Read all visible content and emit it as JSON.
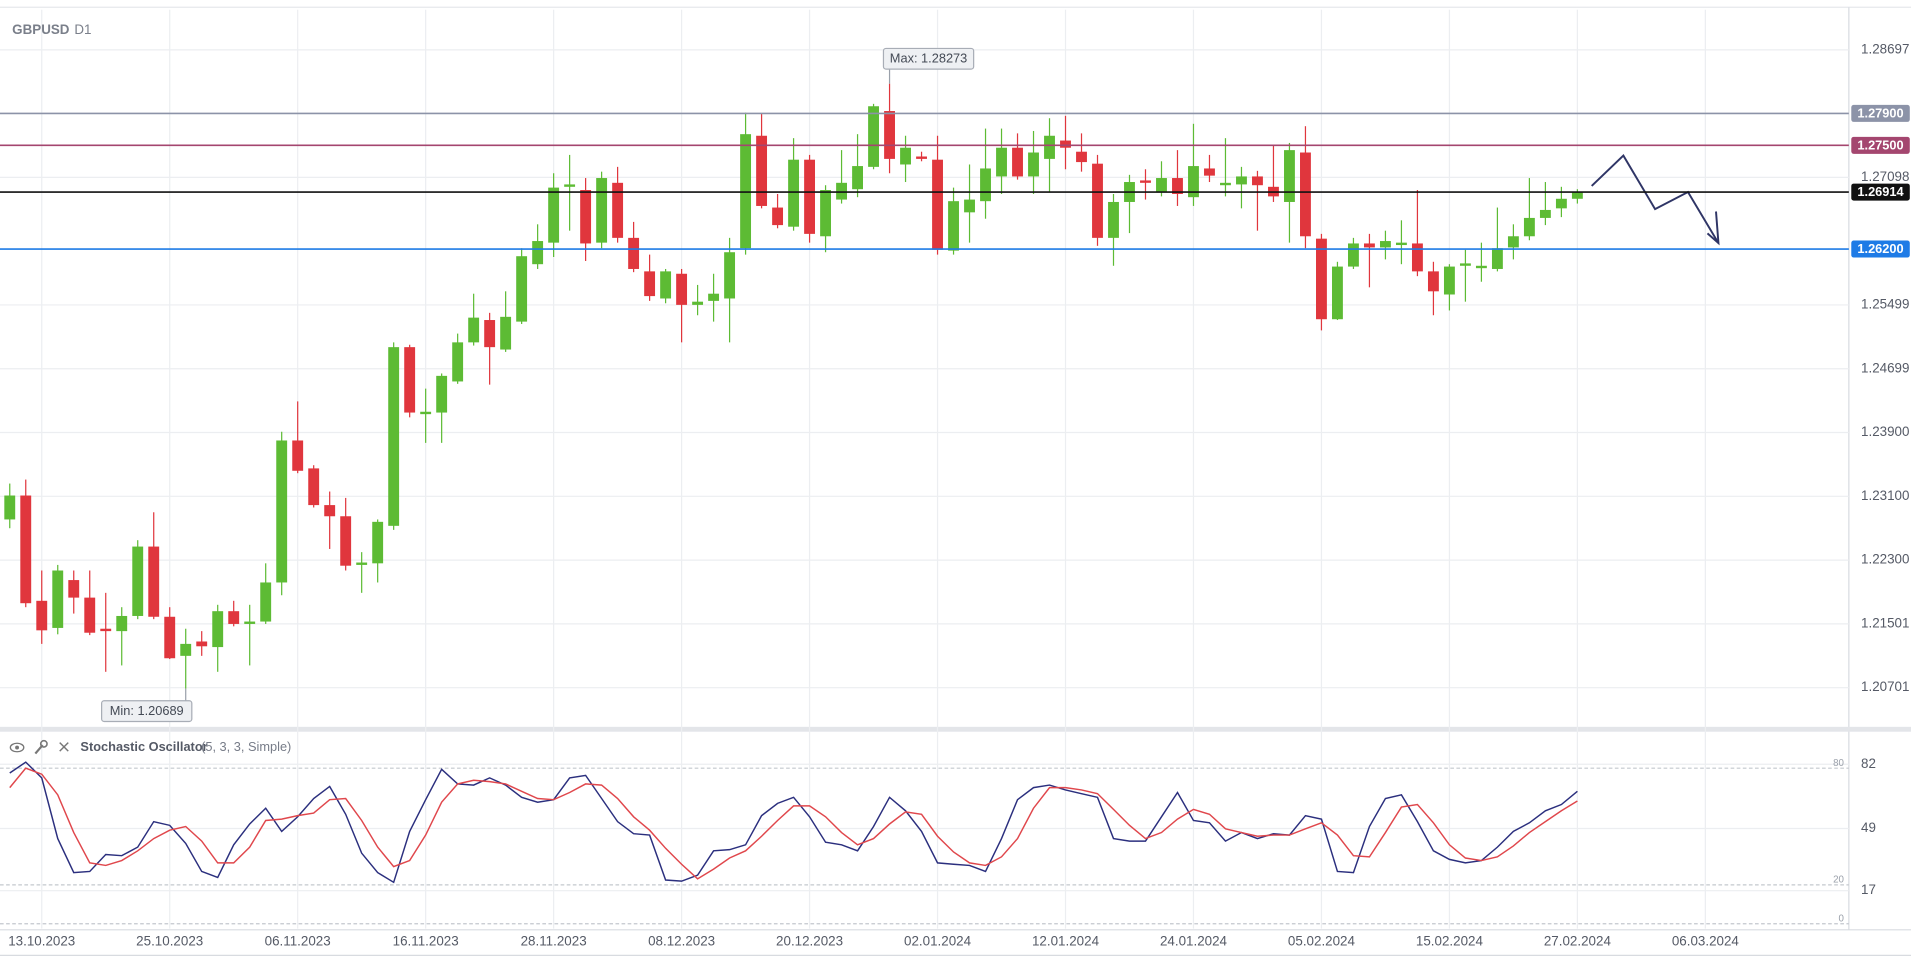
{
  "chart_data": [
    {
      "type": "candlestick",
      "title": "GBPUSD",
      "subtitle": "D1",
      "colors": {
        "up": "#5dbb34",
        "down": "#e0363d"
      },
      "open": [
        1.2281,
        1.2311,
        1.2179,
        1.2145,
        1.2205,
        1.2183,
        1.2144,
        1.2141,
        1.216,
        1.2247,
        1.2159,
        1.211,
        1.2128,
        1.2121,
        1.2166,
        1.215,
        1.2153,
        1.2202,
        1.238,
        1.2345,
        1.2299,
        1.2285,
        1.2224,
        1.2226,
        1.2273,
        1.2497,
        1.2413,
        1.2415,
        1.2454,
        1.2503,
        1.2531,
        1.2494,
        1.2529,
        1.2601,
        1.2628,
        1.2698,
        1.2694,
        1.2628,
        1.2703,
        1.2634,
        1.2592,
        1.2558,
        1.2589,
        1.255,
        1.2555,
        1.2558,
        1.2621,
        1.2762,
        1.2672,
        1.2648,
        1.2732,
        1.2636,
        1.2682,
        1.2695,
        1.2723,
        1.2793,
        1.2726,
        1.2736,
        1.2732,
        1.2618,
        1.2666,
        1.268,
        1.2711,
        1.2747,
        1.2711,
        1.2733,
        1.2756,
        1.2742,
        1.2727,
        1.2634,
        1.2679,
        1.2706,
        1.2691,
        1.2709,
        1.2685,
        1.2721,
        1.27,
        1.2701,
        1.2711,
        1.2698,
        1.2679,
        1.2741,
        1.2633,
        1.2532,
        1.2598,
        1.2627,
        1.2622,
        1.2625,
        1.2627,
        1.2592,
        1.2563,
        1.2599,
        1.2596,
        1.2595,
        1.2622,
        1.2636,
        1.2659,
        1.2671,
        1.2683
      ],
      "high": [
        1.2326,
        1.2331,
        1.2217,
        1.2224,
        1.2217,
        1.2217,
        1.2189,
        1.2171,
        1.2255,
        1.229,
        1.2171,
        1.2144,
        1.2141,
        1.2174,
        1.2179,
        1.2174,
        1.2226,
        1.2391,
        1.2429,
        1.2349,
        1.2316,
        1.2308,
        1.224,
        1.2281,
        1.2503,
        1.25,
        1.2445,
        1.2464,
        1.2514,
        1.2564,
        1.254,
        1.2567,
        1.2621,
        1.2651,
        1.2715,
        1.2738,
        1.2709,
        1.2717,
        1.2723,
        1.2654,
        1.2613,
        1.2595,
        1.2595,
        1.2575,
        1.2589,
        1.2634,
        1.2791,
        1.279,
        1.2689,
        1.2759,
        1.2738,
        1.27,
        1.2744,
        1.2764,
        1.2802,
        1.28273,
        1.2762,
        1.2742,
        1.2762,
        1.2697,
        1.2726,
        1.2771,
        1.2771,
        1.2765,
        1.2768,
        1.2784,
        1.2787,
        1.2765,
        1.2738,
        1.2689,
        1.2713,
        1.272,
        1.273,
        1.2744,
        1.2777,
        1.2738,
        1.2759,
        1.2723,
        1.2718,
        1.275,
        1.2753,
        1.2774,
        1.2639,
        1.2604,
        1.2634,
        1.2639,
        1.2643,
        1.2656,
        1.2694,
        1.2604,
        1.2601,
        1.2619,
        1.2628,
        1.2672,
        1.2651,
        1.2709,
        1.2704,
        1.2698,
        1.2695
      ],
      "low": [
        1.227,
        1.2171,
        1.2125,
        1.2137,
        1.2163,
        1.2136,
        1.209,
        1.2098,
        1.2156,
        1.2156,
        1.2106,
        1.20689,
        1.211,
        1.209,
        1.2147,
        1.2098,
        1.215,
        1.2186,
        1.2339,
        1.2296,
        1.2244,
        1.2217,
        1.2189,
        1.2202,
        1.2268,
        1.2409,
        1.2377,
        1.2377,
        1.2451,
        1.2499,
        1.245,
        1.2491,
        1.2526,
        1.2595,
        1.261,
        1.2643,
        1.2605,
        1.2621,
        1.2628,
        1.2591,
        1.2555,
        1.2552,
        1.2503,
        1.2537,
        1.2529,
        1.2503,
        1.2613,
        1.2671,
        1.2646,
        1.2643,
        1.2628,
        1.2616,
        1.2677,
        1.2685,
        1.272,
        1.2715,
        1.2704,
        1.273,
        1.2613,
        1.2613,
        1.2628,
        1.2658,
        1.2689,
        1.2707,
        1.2689,
        1.2692,
        1.272,
        1.2717,
        1.2624,
        1.2599,
        1.264,
        1.2682,
        1.2686,
        1.2674,
        1.2674,
        1.2704,
        1.2686,
        1.2671,
        1.2643,
        1.2679,
        1.2628,
        1.2621,
        1.2518,
        1.2531,
        1.2595,
        1.2572,
        1.2607,
        1.2601,
        1.2586,
        1.2537,
        1.2543,
        1.2554,
        1.2579,
        1.2592,
        1.2607,
        1.2631,
        1.265,
        1.266,
        1.2677
      ],
      "close": [
        1.2311,
        1.2176,
        1.2142,
        1.2217,
        1.2183,
        1.2139,
        1.2141,
        1.216,
        1.2247,
        1.2159,
        1.2107,
        1.2125,
        1.2122,
        1.2166,
        1.215,
        1.2153,
        1.2202,
        1.238,
        1.2342,
        1.2299,
        1.2285,
        1.2223,
        1.2227,
        1.2278,
        1.2497,
        1.2415,
        1.2416,
        1.2461,
        1.2503,
        1.2534,
        1.2497,
        1.2535,
        1.2611,
        1.263,
        1.2697,
        1.2701,
        1.2627,
        1.2709,
        1.2634,
        1.2595,
        1.2561,
        1.2592,
        1.255,
        1.2554,
        1.2564,
        1.2616,
        1.2764,
        1.2674,
        1.265,
        1.2732,
        1.2639,
        1.2694,
        1.2703,
        1.2724,
        1.2799,
        1.2733,
        1.2747,
        1.2733,
        1.2619,
        1.268,
        1.2682,
        1.2721,
        1.2747,
        1.2711,
        1.2741,
        1.2762,
        1.2747,
        1.2729,
        1.2634,
        1.2679,
        1.2704,
        1.2703,
        1.2709,
        1.2689,
        1.2724,
        1.2712,
        1.2703,
        1.2711,
        1.27,
        1.2686,
        1.2744,
        1.2636,
        1.2532,
        1.2598,
        1.2627,
        1.2622,
        1.263,
        1.2628,
        1.2592,
        1.2567,
        1.2598,
        1.2602,
        1.2599,
        1.2621,
        1.2636,
        1.2659,
        1.2669,
        1.2683,
        1.26914
      ],
      "xlim": [
        -0.61,
        114.97
      ],
      "xticks": [
        {
          "value": 2,
          "label": "13.10.2023"
        },
        {
          "value": 10,
          "label": "25.10.2023"
        },
        {
          "value": 18,
          "label": "06.11.2023"
        },
        {
          "value": 26,
          "label": "16.11.2023"
        },
        {
          "value": 34,
          "label": "28.11.2023"
        },
        {
          "value": 42,
          "label": "08.12.2023"
        },
        {
          "value": 50,
          "label": "20.12.2023"
        },
        {
          "value": 58,
          "label": "02.01.2024"
        },
        {
          "value": 66,
          "label": "12.01.2024"
        },
        {
          "value": 74,
          "label": "24.01.2024"
        },
        {
          "value": 82,
          "label": "05.02.2024"
        },
        {
          "value": 90,
          "label": "15.02.2024"
        },
        {
          "value": 98,
          "label": "27.02.2024"
        },
        {
          "value": 106,
          "label": "06.03.2024"
        }
      ],
      "ylim": [
        1.2021,
        1.292
      ],
      "yticks": [
        1.28697,
        1.27098,
        1.25499,
        1.24699,
        {
          "value": 1.239,
          "label": "1.23900"
        },
        {
          "value": 1.231,
          "label": "1.23100"
        },
        {
          "value": 1.223,
          "label": "1.22300"
        },
        1.21501,
        1.20701
      ],
      "grid": true,
      "levels": [
        {
          "value": 1.279,
          "label": "1.27900",
          "color": "#8c93a8"
        },
        {
          "value": 1.275,
          "label": "1.27500",
          "color": "#a4466f"
        },
        {
          "value": 1.26914,
          "label": "1.26914",
          "color": "#111111"
        },
        {
          "value": 1.262,
          "label": "1.26200",
          "color": "#1e7be6"
        }
      ],
      "annotations": [
        {
          "label": "Max: 1.28273",
          "value": 1.28273
        },
        {
          "label": "Min: 1.20689",
          "value": 1.20689
        }
      ]
    },
    {
      "type": "line",
      "title": "Stochastic Oscillator",
      "subtitle": "(5, 3, 3, Simple)",
      "series": [
        {
          "color": "#2b2f7e",
          "values": [
            77.5,
            83.1,
            75,
            43.8,
            26.3,
            26.9,
            35.6,
            35,
            39.4,
            52.5,
            50.6,
            41.3,
            26.9,
            23.8,
            40.6,
            51.3,
            59.4,
            47.5,
            55,
            64.4,
            70.6,
            56.3,
            36.3,
            26.3,
            21.3,
            47.5,
            63.8,
            79.4,
            71.9,
            71.3,
            75,
            71.3,
            65,
            62.5,
            63.8,
            75,
            76.3,
            64.4,
            52.5,
            46.3,
            45.6,
            22.5,
            21.9,
            25,
            37.5,
            38.1,
            40.6,
            55.6,
            61.9,
            65,
            55,
            41.9,
            40.6,
            37.5,
            50,
            65,
            58.1,
            47.5,
            31.3,
            30.6,
            30,
            26.9,
            43.8,
            63.8,
            70,
            71.3,
            68.8,
            66.9,
            65,
            43.8,
            42.5,
            42.5,
            55,
            67.5,
            53.1,
            51.9,
            42.5,
            46.9,
            43.8,
            46.3,
            45.6,
            55.6,
            53.8,
            26.9,
            26.3,
            50,
            64.4,
            66.3,
            52.5,
            37.5,
            33.1,
            31.3,
            32.5,
            39.4,
            47.5,
            51.9,
            58.1,
            61.3,
            68.1
          ]
        },
        {
          "color": "#e0474c",
          "values": [
            70,
            80,
            76.9,
            66.3,
            46.9,
            31.3,
            30,
            32.5,
            37.5,
            43.8,
            48.1,
            50,
            42.5,
            31.3,
            31.3,
            39.4,
            53.1,
            53.8,
            55.6,
            56.9,
            63.8,
            64.4,
            53.1,
            39.4,
            29.4,
            32.5,
            45.6,
            62.5,
            71.9,
            73.8,
            73.1,
            71.9,
            68.1,
            64.4,
            63.8,
            67.5,
            71.9,
            71.3,
            64.4,
            55,
            48.1,
            38.8,
            30.6,
            23.1,
            28.1,
            33.8,
            37.5,
            45,
            53.1,
            60.6,
            60.6,
            55,
            46.9,
            40.6,
            43.8,
            51.3,
            57.5,
            56.3,
            45,
            36.9,
            31.3,
            30,
            34.4,
            43.8,
            59.4,
            70,
            70,
            68.8,
            66.9,
            58.8,
            50.6,
            43.8,
            46.9,
            53.8,
            58.8,
            56.3,
            48.8,
            46.9,
            45,
            45.6,
            45.6,
            48.8,
            51.9,
            45.6,
            35,
            34.4,
            46.9,
            60,
            61.3,
            51.9,
            40.6,
            33.8,
            32.5,
            34.4,
            40,
            46.9,
            52.5,
            58.1,
            63.1
          ]
        }
      ],
      "ylim": [
        0,
        100
      ],
      "yticks": [
        82,
        49,
        17
      ],
      "levels": [
        80,
        20,
        0
      ]
    }
  ]
}
